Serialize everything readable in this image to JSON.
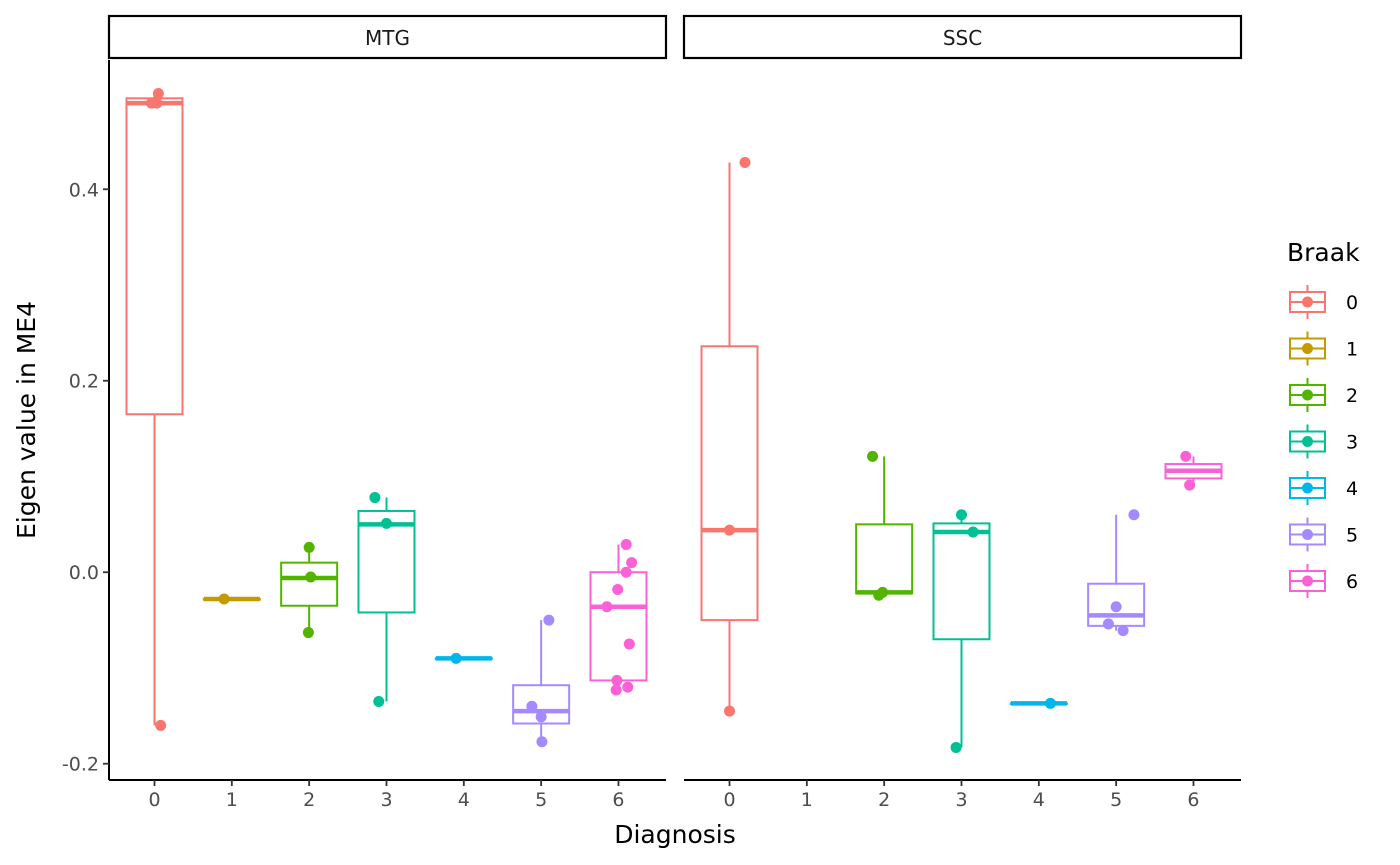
{
  "chart_data": {
    "type": "boxplot",
    "xlabel": "Diagnosis",
    "ylabel": "Eigen value in ME4",
    "ylim": [
      -0.217,
      0.535
    ],
    "y_ticks": [
      "-0.2",
      "0.0",
      "0.2",
      "0.4"
    ],
    "y_tick_values": [
      -0.2,
      0.0,
      0.2,
      0.4
    ],
    "categories": [
      "0",
      "1",
      "2",
      "3",
      "4",
      "5",
      "6"
    ],
    "legend": {
      "title": "Braak",
      "position": "right",
      "entries": [
        {
          "label": "0",
          "color": "#F8766D"
        },
        {
          "label": "1",
          "color": "#C49A00"
        },
        {
          "label": "2",
          "color": "#53B400"
        },
        {
          "label": "3",
          "color": "#00C094"
        },
        {
          "label": "4",
          "color": "#00B6EB"
        },
        {
          "label": "5",
          "color": "#A58AFF"
        },
        {
          "label": "6",
          "color": "#FB61D7"
        }
      ]
    },
    "panels": [
      {
        "name": "MTG",
        "boxes": [
          {
            "category": "0",
            "braak": "0",
            "min": -0.16,
            "q1": 0.165,
            "median": 0.49,
            "q3": 0.495,
            "max": 0.5,
            "points": [
              [
                0.03,
                0.49
              ],
              [
                -0.04,
                0.49
              ],
              [
                0.05,
                0.5
              ],
              [
                0.08,
                -0.16
              ]
            ]
          },
          {
            "category": "1",
            "braak": "1",
            "min": -0.028,
            "q1": -0.028,
            "median": -0.028,
            "q3": -0.028,
            "max": -0.028,
            "points": [
              [
                -0.1,
                -0.028
              ]
            ]
          },
          {
            "category": "2",
            "braak": "2",
            "min": -0.063,
            "q1": -0.035,
            "median": -0.006,
            "q3": 0.01,
            "max": 0.026,
            "points": [
              [
                0.0,
                0.026
              ],
              [
                0.02,
                -0.005
              ],
              [
                -0.01,
                -0.063
              ]
            ]
          },
          {
            "category": "3",
            "braak": "3",
            "min": -0.135,
            "q1": -0.042,
            "median": 0.05,
            "q3": 0.064,
            "max": 0.078,
            "points": [
              [
                -0.15,
                0.078
              ],
              [
                0.0,
                0.051
              ],
              [
                -0.1,
                -0.135
              ]
            ]
          },
          {
            "category": "4",
            "braak": "4",
            "min": -0.09,
            "q1": -0.09,
            "median": -0.09,
            "q3": -0.09,
            "max": -0.09,
            "points": [
              [
                -0.1,
                -0.09
              ]
            ]
          },
          {
            "category": "5",
            "braak": "5",
            "min": -0.177,
            "q1": -0.158,
            "median": -0.145,
            "q3": -0.118,
            "max": -0.05,
            "points": [
              [
                0.1,
                -0.05
              ],
              [
                -0.12,
                -0.14
              ],
              [
                0.0,
                -0.151
              ],
              [
                0.01,
                -0.177
              ]
            ]
          },
          {
            "category": "6",
            "braak": "6",
            "min": -0.123,
            "q1": -0.113,
            "median": -0.036,
            "q3": 0.0,
            "max": 0.029,
            "points": [
              [
                0.1,
                0.029
              ],
              [
                0.17,
                0.01
              ],
              [
                0.1,
                0.0
              ],
              [
                -0.01,
                -0.018
              ],
              [
                -0.15,
                -0.036
              ],
              [
                0.14,
                -0.075
              ],
              [
                -0.02,
                -0.113
              ],
              [
                0.12,
                -0.12
              ],
              [
                -0.03,
                -0.123
              ]
            ]
          }
        ]
      },
      {
        "name": "SSC",
        "boxes": [
          {
            "category": "0",
            "braak": "0",
            "min": -0.145,
            "q1": -0.05,
            "median": 0.044,
            "q3": 0.236,
            "max": 0.428,
            "points": [
              [
                0.2,
                0.428
              ],
              [
                0.0,
                0.044
              ],
              [
                0.0,
                -0.145
              ]
            ]
          },
          {
            "category": "2",
            "braak": "2",
            "min": -0.024,
            "q1": -0.022,
            "median": -0.021,
            "q3": 0.05,
            "max": 0.121,
            "points": [
              [
                -0.15,
                0.121
              ],
              [
                -0.02,
                -0.021
              ],
              [
                -0.07,
                -0.024
              ]
            ]
          },
          {
            "category": "3",
            "braak": "3",
            "min": -0.183,
            "q1": -0.07,
            "median": 0.042,
            "q3": 0.051,
            "max": 0.06,
            "points": [
              [
                0.0,
                0.06
              ],
              [
                0.15,
                0.042
              ],
              [
                -0.07,
                -0.183
              ]
            ]
          },
          {
            "category": "4",
            "braak": "4",
            "min": -0.137,
            "q1": -0.137,
            "median": -0.137,
            "q3": -0.137,
            "max": -0.137,
            "points": [
              [
                0.15,
                -0.137
              ]
            ]
          },
          {
            "category": "5",
            "braak": "5",
            "min": -0.061,
            "q1": -0.056,
            "median": -0.045,
            "q3": -0.012,
            "max": 0.06,
            "points": [
              [
                0.23,
                0.06
              ],
              [
                0.0,
                -0.036
              ],
              [
                -0.1,
                -0.054
              ],
              [
                0.09,
                -0.061
              ]
            ]
          },
          {
            "category": "6",
            "braak": "6",
            "min": 0.091,
            "q1": 0.098,
            "median": 0.106,
            "q3": 0.113,
            "max": 0.121,
            "points": [
              [
                -0.1,
                0.121
              ],
              [
                -0.05,
                0.091
              ]
            ]
          }
        ]
      }
    ]
  }
}
